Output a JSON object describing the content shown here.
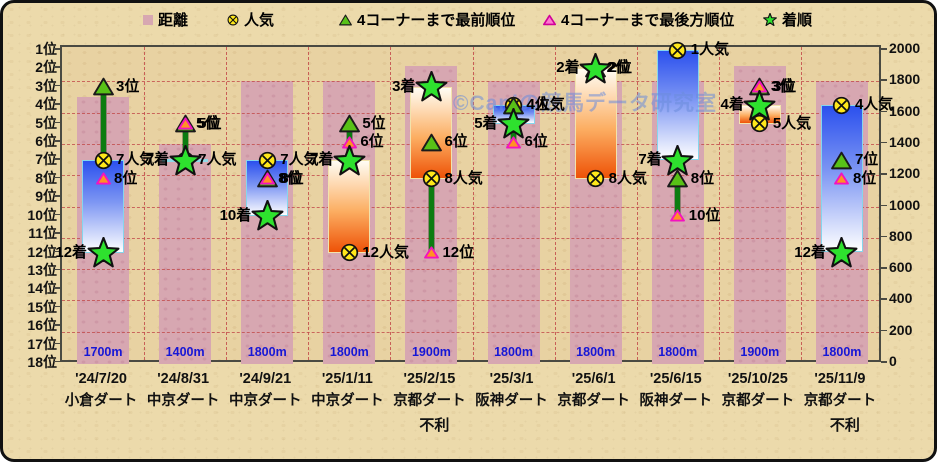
{
  "watermark": "©Caniの競馬データ研究室",
  "legend": [
    {
      "label": "距離",
      "marker": "square",
      "color": "#d7a7b1"
    },
    {
      "label": "人気",
      "marker": "circle-x",
      "color": "#ffe81a"
    },
    {
      "label": "4コーナーまで最前順位",
      "marker": "triangle",
      "color": "#58c117"
    },
    {
      "label": "4コーナーまで最後方順位",
      "marker": "triangle",
      "color": "#ff77d0"
    },
    {
      "label": "着順",
      "marker": "star",
      "color": "#2ee12e"
    }
  ],
  "y_axis_left": {
    "labels": [
      "1位",
      "2位",
      "3位",
      "4位",
      "5位",
      "6位",
      "7位",
      "8位",
      "9位",
      "10位",
      "11位",
      "12位",
      "13位",
      "14位",
      "15位",
      "16位",
      "17位",
      "18位"
    ]
  },
  "y_axis_right": {
    "labels": [
      "2000",
      "1800",
      "1600",
      "1400",
      "1200",
      "1000",
      "800",
      "600",
      "400",
      "200",
      "0"
    ]
  },
  "chart_data": {
    "type": "combo",
    "title": "",
    "y_left": {
      "min": 1,
      "max": 18,
      "unit": "位"
    },
    "y_right": {
      "min": 0,
      "max": 2000,
      "step": 200,
      "grid": "dashed"
    },
    "series_colors": {
      "distance_bar": "#d7a7b1",
      "popularity": "#ffe81a",
      "front": "#58c117",
      "rear": "#ff9224",
      "finish": "#2ee12e",
      "blue_box_top": "#2b50ee",
      "orange_box_bottom": "#ee5207",
      "connector_line": "#0c7c10"
    },
    "races": [
      {
        "date": "'24/7/20",
        "track": "小倉ダート",
        "distance_m": 1700,
        "distance_label": "1700m",
        "popularity": 7,
        "front": 3,
        "rear": 8,
        "finish": 12,
        "labels": {
          "front": "3位",
          "popularity": "7人気",
          "rear": "8位",
          "finish": "12着"
        },
        "box": {
          "color": "blue",
          "from": 7,
          "to": 12
        },
        "line": {
          "from": 3,
          "to": 7
        },
        "note": ""
      },
      {
        "date": "'24/8/31",
        "track": "中京ダート",
        "distance_m": 1400,
        "distance_label": "1400m",
        "popularity": 7,
        "front": 5,
        "rear": 5,
        "finish": 7,
        "labels": {
          "front": "5位",
          "popularity": "7人気",
          "rear": "5位",
          "finish": "7着"
        },
        "box": {
          "color": "blue",
          "from": 7,
          "to": 7
        },
        "line": {
          "from": 5,
          "to": 7
        },
        "note": ""
      },
      {
        "date": "'24/9/21",
        "track": "中京ダート",
        "distance_m": 1800,
        "distance_label": "1800m",
        "popularity": 7,
        "front": 8,
        "rear": 8,
        "finish": 10,
        "labels": {
          "front": "8位",
          "popularity": "7人気",
          "rear": "8位",
          "finish": "10着"
        },
        "box": {
          "color": "blue",
          "from": 7,
          "to": 10
        },
        "line": null,
        "note": ""
      },
      {
        "date": "'25/1/11",
        "track": "中京ダート",
        "distance_m": 1800,
        "distance_label": "1800m",
        "popularity": 12,
        "front": 5,
        "rear": 6,
        "finish": 7,
        "labels": {
          "front": "5位",
          "popularity": "12人気",
          "rear": "6位",
          "finish": "7着"
        },
        "box": {
          "color": "orange",
          "from": 7,
          "to": 12
        },
        "line": {
          "from": 5,
          "to": 7
        },
        "note": ""
      },
      {
        "date": "'25/2/15",
        "track": "京都ダート",
        "distance_m": 1900,
        "distance_label": "1900m",
        "popularity": 8,
        "front": 6,
        "rear": 12,
        "finish": 3,
        "labels": {
          "front": "6位",
          "popularity": "8人気",
          "rear": "12位",
          "finish": "3着"
        },
        "box": {
          "color": "orange",
          "from": 3,
          "to": 8
        },
        "line": {
          "from": 8,
          "to": 12
        },
        "note": "不利"
      },
      {
        "date": "'25/3/1",
        "track": "阪神ダート",
        "distance_m": 1800,
        "distance_label": "1800m",
        "popularity": 4,
        "front": 4,
        "rear": 6,
        "finish": 5,
        "labels": {
          "front": "4位",
          "popularity": "4人気",
          "rear": "6位",
          "finish": "5着"
        },
        "box": {
          "color": "blue",
          "from": 4,
          "to": 5
        },
        "line": {
          "from": 4,
          "to": 6
        },
        "note": ""
      },
      {
        "date": "'25/6/1",
        "track": "京都ダート",
        "distance_m": 1800,
        "distance_label": "1800m",
        "popularity": 8,
        "front": 2,
        "rear": 2,
        "finish": 2,
        "labels": {
          "front": "2位",
          "popularity": "8人気",
          "rear": "2位",
          "finish": "2着"
        },
        "box": {
          "color": "orange",
          "from": 2,
          "to": 8
        },
        "line": null,
        "note": ""
      },
      {
        "date": "'25/6/15",
        "track": "阪神ダート",
        "distance_m": 1800,
        "distance_label": "1800m",
        "popularity": 1,
        "front": 8,
        "rear": 10,
        "finish": 7,
        "labels": {
          "front": "8位",
          "popularity": "1人気",
          "rear": "10位",
          "finish": "7着"
        },
        "box": {
          "color": "blue",
          "from": 1,
          "to": 7
        },
        "line": {
          "from": 8,
          "to": 10
        },
        "note": ""
      },
      {
        "date": "'25/10/25",
        "track": "京都ダート",
        "distance_m": 1900,
        "distance_label": "1900m",
        "popularity": 5,
        "front": 3,
        "rear": 3,
        "finish": 4,
        "labels": {
          "front": "3位",
          "popularity": "5人気",
          "rear": "3位",
          "finish": "4着"
        },
        "box": {
          "color": "orange",
          "from": 4,
          "to": 5
        },
        "line": {
          "from": 3,
          "to": 4
        },
        "note": ""
      },
      {
        "date": "'25/11/9",
        "track": "京都ダート",
        "distance_m": 1800,
        "distance_label": "1800m",
        "popularity": 4,
        "front": 7,
        "rear": 8,
        "finish": 12,
        "labels": {
          "front": "7位",
          "popularity": "4人気",
          "rear": "8位",
          "finish": "12着"
        },
        "box": {
          "color": "blue",
          "from": 4,
          "to": 12
        },
        "line": null,
        "note": "不利"
      }
    ]
  }
}
